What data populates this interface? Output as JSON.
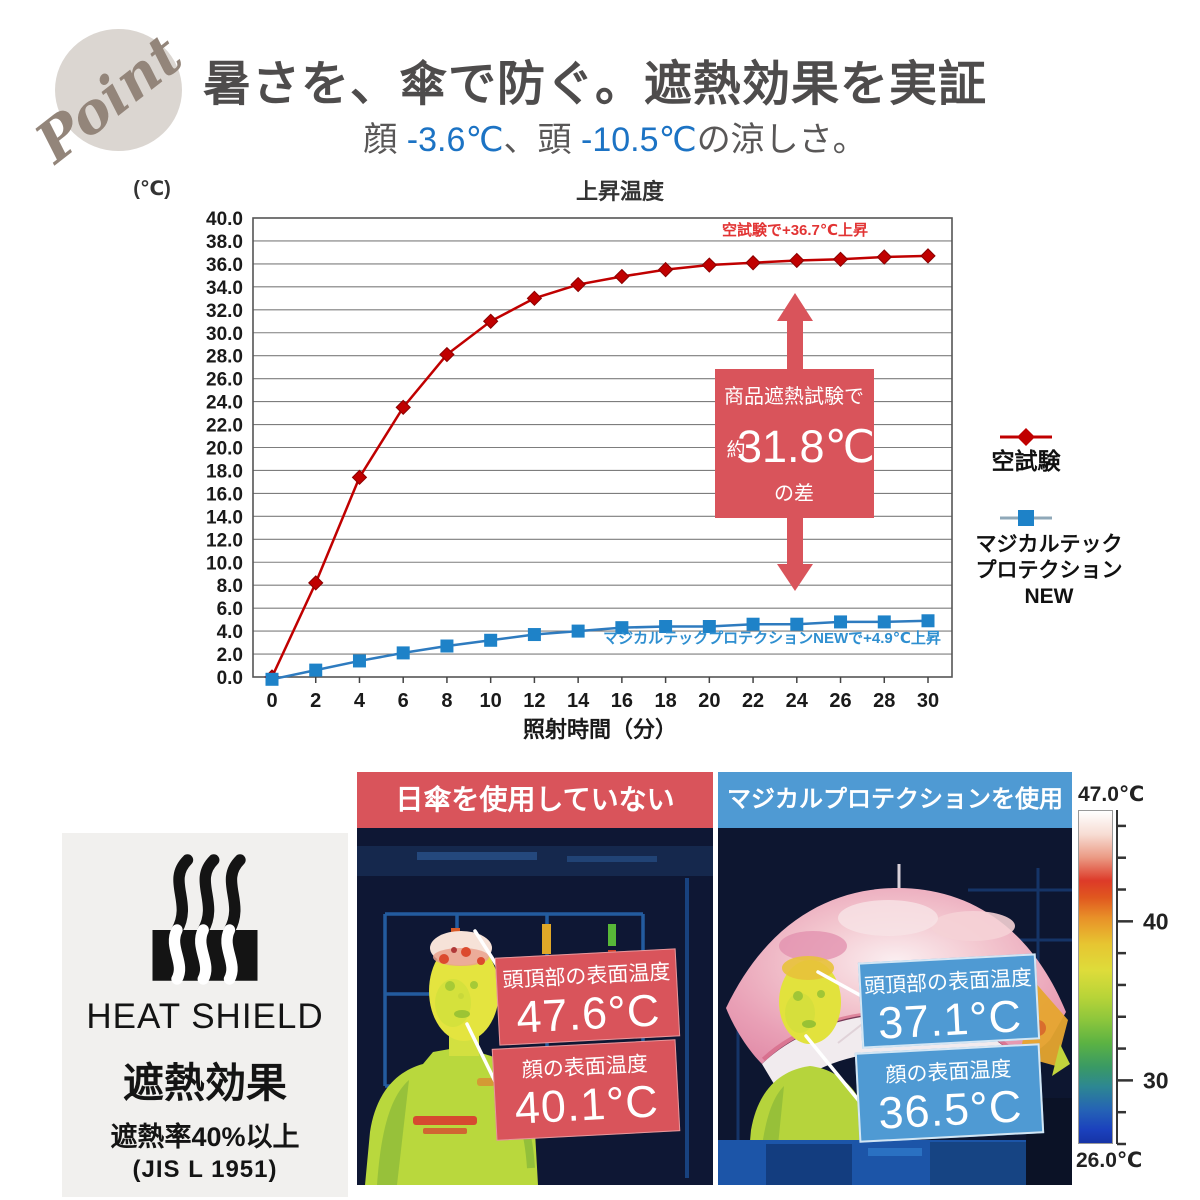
{
  "point_badge": {
    "label": "Point"
  },
  "header": {
    "title": "暑さを、傘で防ぐ。遮熱効果を実証",
    "subtitle": [
      {
        "text": "顔 ",
        "highlight": false
      },
      {
        "text": "-3.6℃",
        "highlight": true
      },
      {
        "text": "、頭 ",
        "highlight": false
      },
      {
        "text": "-10.5℃",
        "highlight": true
      },
      {
        "text": "の涼しさ。",
        "highlight": false
      }
    ]
  },
  "chart_data": {
    "type": "line",
    "title": "上昇温度",
    "ylabel": "(℃)",
    "xlabel": "照射時間（分）",
    "ylim": [
      0,
      40
    ],
    "ytick_step": 2,
    "grid": true,
    "legend_position": "right",
    "x": [
      0,
      2,
      4,
      6,
      8,
      10,
      12,
      14,
      16,
      18,
      20,
      22,
      24,
      26,
      28,
      30
    ],
    "series": [
      {
        "name": "空試験",
        "color": "#c00000",
        "marker": "diamond",
        "values": [
          0.0,
          8.2,
          17.4,
          23.5,
          28.1,
          31.0,
          33.0,
          34.2,
          34.9,
          35.5,
          35.9,
          36.1,
          36.3,
          36.4,
          36.6,
          36.7
        ],
        "annotation": "空試験で+36.7℃上昇"
      },
      {
        "name": "マジカルテックプロテクションNEW",
        "color": "#2e7bbf",
        "marker": "square",
        "values": [
          -0.2,
          0.6,
          1.4,
          2.1,
          2.7,
          3.2,
          3.7,
          4.0,
          4.3,
          4.4,
          4.4,
          4.6,
          4.6,
          4.8,
          4.8,
          4.9
        ],
        "annotation": "マジカルテックプロテクションNEWで+4.9℃上昇"
      }
    ],
    "legend_wrap": [
      "マジカルテック",
      "プロテクション",
      "NEW"
    ],
    "callout": {
      "line1": "商品遮熱試験で",
      "prefix": "約",
      "value": "31.8℃",
      "line3": "の差"
    }
  },
  "heat_shield": {
    "title": "HEAT SHIELD",
    "effect": "遮熱効果",
    "rate": "遮熱率40%以上",
    "standard": "(JIS L 1951)"
  },
  "thermal": {
    "left": {
      "header": "日傘を使用していない",
      "labels": [
        {
          "title": "頭頂部の表面温度",
          "value": "47.6°C"
        },
        {
          "title": "顔の表面温度",
          "value": "40.1°C"
        }
      ]
    },
    "right": {
      "header": "マジカルプロテクションを使用",
      "labels": [
        {
          "title": "頭頂部の表面温度",
          "value": "37.1°C"
        },
        {
          "title": "顔の表面温度",
          "value": "36.5°C"
        }
      ]
    },
    "scale": {
      "max": "47.0℃",
      "min": "26.0℃",
      "tick_labels": [
        "40",
        "30"
      ]
    }
  },
  "colors": {
    "accent_red": "#d9545b",
    "accent_blue": "#4f9ad3",
    "line_red": "#c00000",
    "line_blue": "#2e7bbf",
    "marker_blue": "#1e82c8",
    "annotation_red": "#e23434",
    "annotation_blue": "#2f8fd0",
    "subtitle_blue": "#1c73c4"
  }
}
